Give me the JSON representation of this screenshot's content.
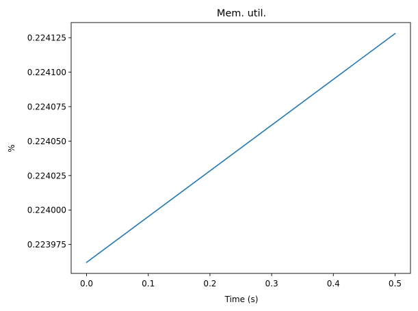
{
  "chart_data": {
    "type": "line",
    "title": "Mem. util.",
    "xlabel": "Time (s)",
    "ylabel": "%",
    "xlim": [
      -0.025,
      0.525
    ],
    "ylim": [
      0.223954,
      0.224136
    ],
    "xticks": [
      0.0,
      0.1,
      0.2,
      0.3,
      0.4,
      0.5
    ],
    "xtick_labels": [
      "0.0",
      "0.1",
      "0.2",
      "0.3",
      "0.4",
      "0.5"
    ],
    "yticks": [
      0.223975,
      0.224,
      0.224025,
      0.22405,
      0.224075,
      0.2241,
      0.224125
    ],
    "ytick_labels": [
      "0.223975",
      "0.224000",
      "0.224025",
      "0.224050",
      "0.224075",
      "0.224100",
      "0.224125"
    ],
    "grid": false,
    "series": [
      {
        "color": "#1f77b4",
        "x": [
          0.0,
          0.5
        ],
        "y": [
          0.223962,
          0.224128
        ]
      }
    ]
  }
}
